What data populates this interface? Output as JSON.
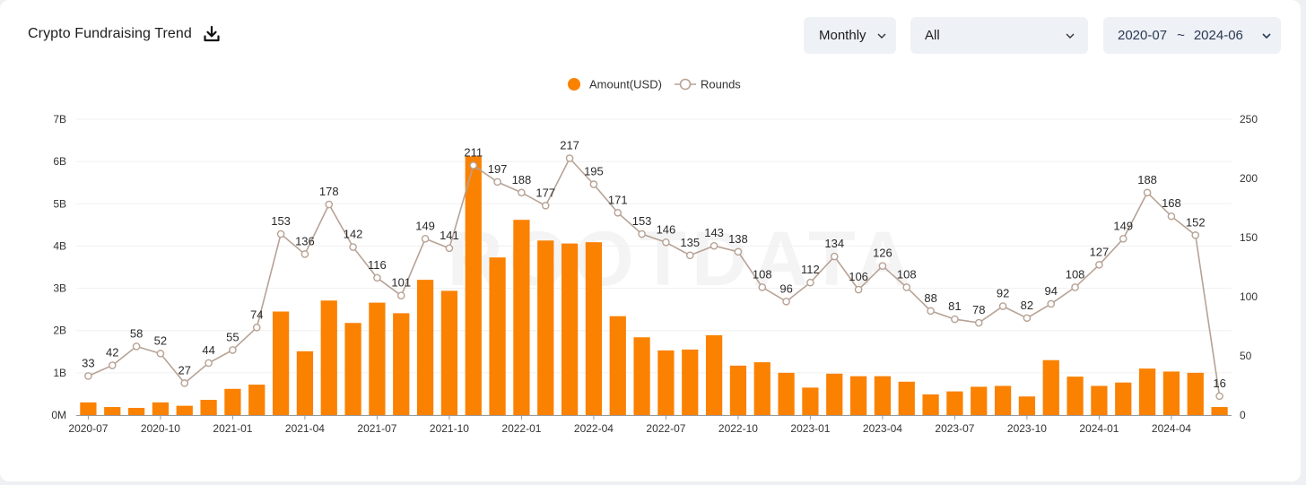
{
  "header": {
    "title": "Crypto Fundraising Trend",
    "download_icon": "download-icon"
  },
  "filters": {
    "period": "Monthly",
    "category": "All",
    "range_start": "2020-07",
    "range_sep": "~",
    "range_end": "2024-06"
  },
  "colors": {
    "bar": "#fb8100",
    "line": "#b7a295",
    "axis": "#9a9a9a",
    "grid": "#f0f0f0"
  },
  "chart_data": {
    "type": "bar",
    "title": "Crypto Fundraising Trend",
    "legend": [
      "Amount(USD)",
      "Rounds"
    ],
    "legend_position": "top-center",
    "categories": [
      "2020-07",
      "2020-08",
      "2020-09",
      "2020-10",
      "2020-11",
      "2020-12",
      "2021-01",
      "2021-02",
      "2021-03",
      "2021-04",
      "2021-05",
      "2021-06",
      "2021-07",
      "2021-08",
      "2021-09",
      "2021-10",
      "2021-11",
      "2021-12",
      "2022-01",
      "2022-02",
      "2022-03",
      "2022-04",
      "2022-05",
      "2022-06",
      "2022-07",
      "2022-08",
      "2022-09",
      "2022-10",
      "2022-11",
      "2022-12",
      "2023-01",
      "2023-02",
      "2023-03",
      "2023-04",
      "2023-05",
      "2023-06",
      "2023-07",
      "2023-08",
      "2023-09",
      "2023-10",
      "2023-11",
      "2023-12",
      "2024-01",
      "2024-02",
      "2024-03",
      "2024-04",
      "2024-05",
      "2024-06"
    ],
    "x_tick_labels": [
      "2020-07",
      "2020-10",
      "2021-01",
      "2021-04",
      "2021-07",
      "2021-10",
      "2022-01",
      "2022-04",
      "2022-07",
      "2022-10",
      "2023-01",
      "2023-04",
      "2023-07",
      "2023-10",
      "2024-01",
      "2024-04"
    ],
    "series": [
      {
        "name": "Amount(USD)",
        "type": "bar",
        "axis": "left",
        "unit": "B",
        "values": [
          0.3,
          0.19,
          0.17,
          0.3,
          0.22,
          0.36,
          0.62,
          0.72,
          2.45,
          1.51,
          2.71,
          2.18,
          2.66,
          2.41,
          3.2,
          2.94,
          6.12,
          3.73,
          4.62,
          4.13,
          4.06,
          4.09,
          2.34,
          1.84,
          1.53,
          1.55,
          1.89,
          1.17,
          1.25,
          1.0,
          0.65,
          0.98,
          0.92,
          0.92,
          0.79,
          0.49,
          0.56,
          0.67,
          0.69,
          0.44,
          1.3,
          0.91,
          0.69,
          0.77,
          1.1,
          1.03,
          1.0,
          0.19
        ]
      },
      {
        "name": "Rounds",
        "type": "line",
        "axis": "right",
        "values": [
          33,
          42,
          58,
          52,
          27,
          44,
          55,
          74,
          153,
          136,
          178,
          142,
          116,
          101,
          149,
          141,
          211,
          197,
          188,
          177,
          217,
          195,
          171,
          153,
          146,
          135,
          143,
          138,
          108,
          96,
          112,
          134,
          106,
          126,
          108,
          88,
          81,
          78,
          92,
          82,
          94,
          108,
          127,
          149,
          188,
          168,
          152,
          16
        ]
      }
    ],
    "y_left": {
      "ticks": [
        "0M",
        "1B",
        "2B",
        "3B",
        "4B",
        "5B",
        "6B",
        "7B"
      ],
      "ylim": [
        0,
        7
      ]
    },
    "y_right": {
      "ticks": [
        "0",
        "50",
        "100",
        "150",
        "200",
        "250"
      ],
      "ylim": [
        0,
        250
      ]
    },
    "watermark": "ROOTDATA",
    "grid": true
  }
}
